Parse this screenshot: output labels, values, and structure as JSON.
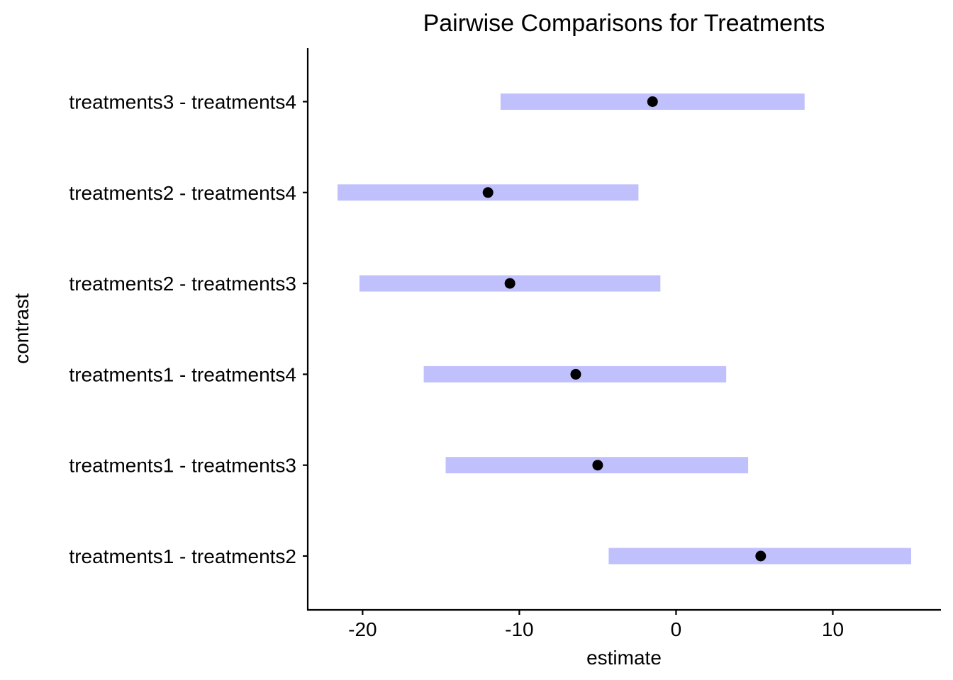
{
  "chart_data": {
    "type": "errorbar",
    "title": "Pairwise Comparisons for Treatments",
    "xlabel": "estimate",
    "ylabel": "contrast",
    "xlim": [
      -23.5,
      16.9
    ],
    "xticks": [
      -20,
      -10,
      0,
      10
    ],
    "grid": false,
    "legend": "none",
    "interval_color": "#c0c0fc",
    "point_color": "#000000",
    "categories": [
      "treatments1 - treatments2",
      "treatments1 - treatments3",
      "treatments1 - treatments4",
      "treatments2 - treatments3",
      "treatments2 - treatments4",
      "treatments3 - treatments4"
    ],
    "estimates": [
      5.4,
      -5.0,
      -6.4,
      -10.6,
      -12.0,
      -1.5
    ],
    "lower": [
      -4.3,
      -14.7,
      -16.1,
      -20.2,
      -21.6,
      -11.2
    ],
    "upper": [
      15.0,
      4.6,
      3.2,
      -1.0,
      -2.4,
      8.2
    ]
  }
}
